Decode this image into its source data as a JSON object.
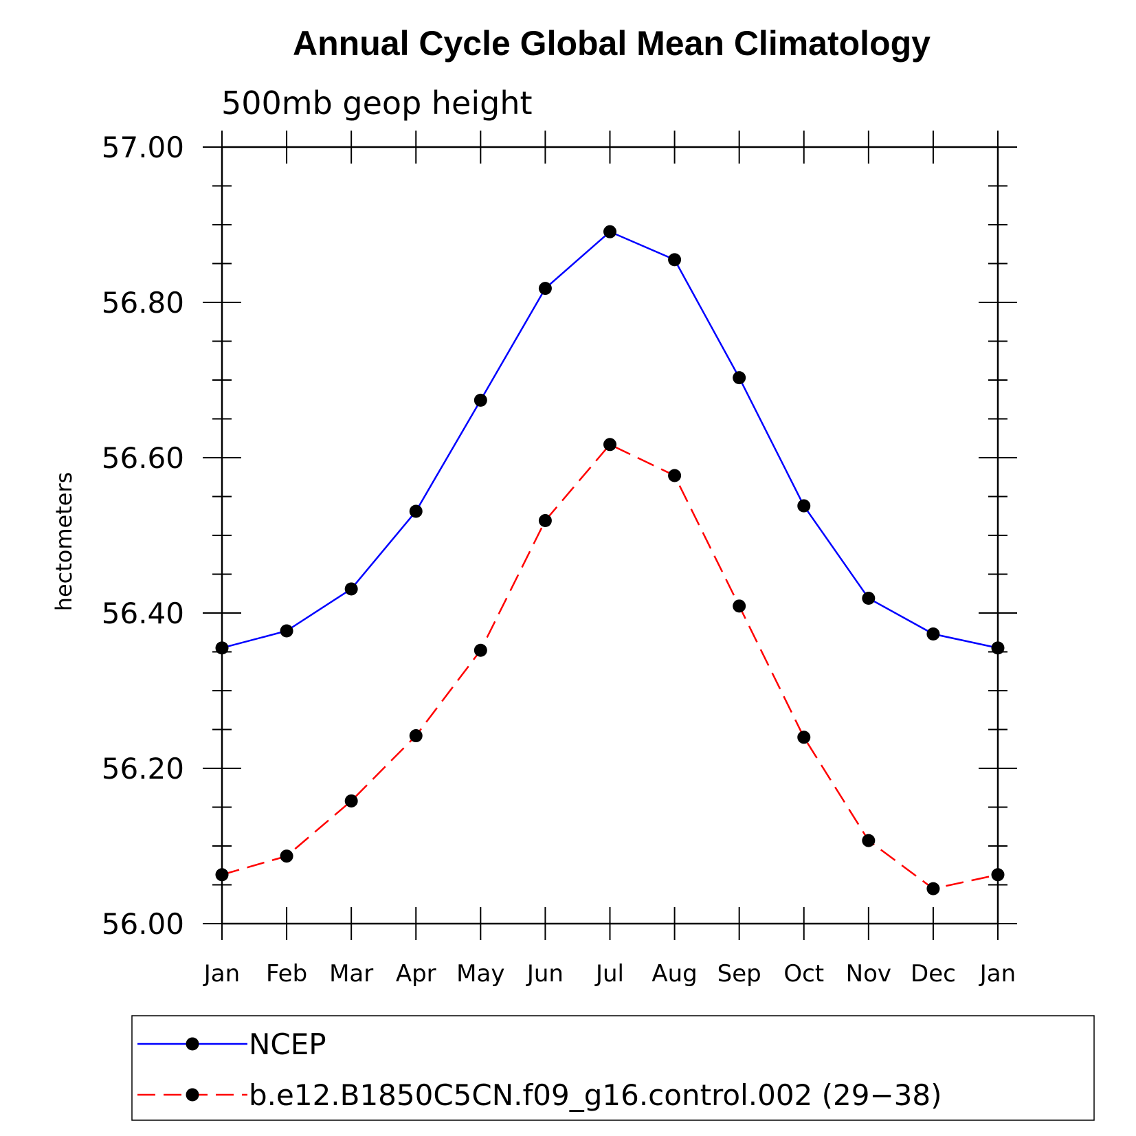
{
  "chart_data": {
    "type": "line",
    "title": "Annual Cycle Global Mean Climatology",
    "subtitle": "500mb geop height",
    "xlabel": "",
    "ylabel": "hectometers",
    "categories": [
      "Jan",
      "Feb",
      "Mar",
      "Apr",
      "May",
      "Jun",
      "Jul",
      "Aug",
      "Sep",
      "Oct",
      "Nov",
      "Dec",
      "Jan"
    ],
    "ylim": [
      56.0,
      57.0
    ],
    "yticks": [
      "56.00",
      "56.20",
      "56.40",
      "56.60",
      "56.80",
      "57.00"
    ],
    "grid": false,
    "legend_position": "bottom",
    "series": [
      {
        "name": "NCEP",
        "color": "#0000ff",
        "dash": "solid",
        "marker": "circle",
        "values": [
          56.355,
          56.377,
          56.431,
          56.531,
          56.674,
          56.818,
          56.891,
          56.855,
          56.703,
          56.538,
          56.419,
          56.373,
          56.355
        ]
      },
      {
        "name": "b.e12.B1850C5CN.f09_g16.control.002 (29−38)",
        "color": "#ff0000",
        "dash": "dashed",
        "marker": "circle",
        "values": [
          56.063,
          56.087,
          56.158,
          56.242,
          56.352,
          56.519,
          56.617,
          56.577,
          56.409,
          56.24,
          56.107,
          56.045,
          56.063
        ]
      }
    ]
  }
}
